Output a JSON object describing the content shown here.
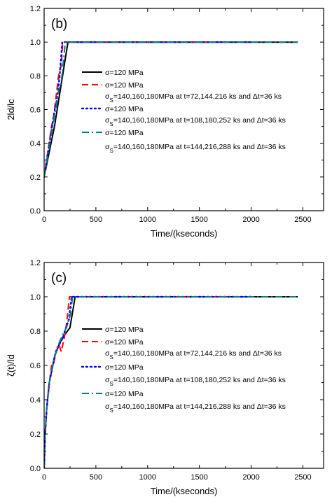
{
  "chart_data": [
    {
      "type": "line",
      "panel_label": "(b)",
      "xlabel": "Time/(kseconds)",
      "ylabel": "2ld/lc",
      "xlim": [
        0,
        2700
      ],
      "ylim": [
        0,
        1.2
      ],
      "xticks": [
        0,
        500,
        1000,
        1500,
        2000,
        2500
      ],
      "yticks": [
        0.0,
        0.2,
        0.4,
        0.6,
        0.8,
        1.0,
        1.2
      ],
      "tick_labels_x": [
        "0",
        "500",
        "1000",
        "1500",
        "2000",
        "2500"
      ],
      "tick_labels_y": [
        "0.0",
        "0.2",
        "0.4",
        "0.6",
        "0.8",
        "1.0",
        "1.2"
      ],
      "legend_position": "center-right",
      "series": [
        {
          "color": "#000000",
          "style": "solid",
          "legend": [
            "σ=120 MPa"
          ],
          "points": [
            [
              0,
              0.2
            ],
            [
              100,
              0.5
            ],
            [
              230,
              1.0
            ],
            [
              2450,
              1.0
            ]
          ]
        },
        {
          "color": "#ff0000",
          "style": "dash",
          "legend": [
            "σ=120 MPa",
            "σS=140,160,180MPa at t=72,144,216 ks and Δt=36 ks"
          ],
          "points": [
            [
              0,
              0.2
            ],
            [
              72,
              0.5
            ],
            [
              90,
              0.55
            ],
            [
              144,
              0.82
            ],
            [
              165,
              0.86
            ],
            [
              180,
              1.0
            ],
            [
              1800,
              1.0
            ]
          ]
        },
        {
          "color": "#0000ff",
          "style": "dot",
          "legend": [
            "σ=120 MPa",
            "σS=140,160,180MPa at t=108,180,252 ks and Δt=36 ks"
          ],
          "points": [
            [
              0,
              0.2
            ],
            [
              108,
              0.62
            ],
            [
              125,
              0.66
            ],
            [
              150,
              0.8
            ],
            [
              175,
              1.0
            ],
            [
              2000,
              1.0
            ]
          ]
        },
        {
          "color": "#008080",
          "style": "dashdot",
          "legend": [
            "σ=120 MPa",
            "σS=140,160,180MPa at t=144,216,288 ks and Δt=36 ks"
          ],
          "points": [
            [
              0,
              0.2
            ],
            [
              144,
              0.72
            ],
            [
              165,
              0.76
            ],
            [
              205,
              1.0
            ],
            [
              2450,
              1.0
            ]
          ]
        }
      ]
    },
    {
      "type": "line",
      "panel_label": "(c)",
      "xlabel": "Time/(kseconds)",
      "ylabel": "ζ(t)/ld",
      "xlim": [
        0,
        2700
      ],
      "ylim": [
        0,
        1.2
      ],
      "xticks": [
        0,
        500,
        1000,
        1500,
        2000,
        2500
      ],
      "yticks": [
        0.0,
        0.2,
        0.4,
        0.6,
        0.8,
        1.0,
        1.2
      ],
      "tick_labels_x": [
        "0",
        "500",
        "1000",
        "1500",
        "2000",
        "2500"
      ],
      "tick_labels_y": [
        "0.0",
        "0.2",
        "0.4",
        "0.6",
        "0.8",
        "1.0",
        "1.2"
      ],
      "legend_position": "center-right",
      "series": [
        {
          "color": "#000000",
          "style": "solid",
          "legend": [
            "σ=120 MPa"
          ],
          "points": [
            [
              0,
              0.0
            ],
            [
              10,
              0.2
            ],
            [
              25,
              0.35
            ],
            [
              50,
              0.5
            ],
            [
              100,
              0.65
            ],
            [
              150,
              0.73
            ],
            [
              200,
              0.78
            ],
            [
              250,
              0.82
            ],
            [
              300,
              1.0
            ],
            [
              2450,
              1.0
            ]
          ]
        },
        {
          "color": "#ff0000",
          "style": "dash",
          "legend": [
            "σ=120 MPa",
            "σS=140,160,180MPa at t=72,144,216 ks and Δt=36 ks"
          ],
          "points": [
            [
              0,
              0.0
            ],
            [
              10,
              0.2
            ],
            [
              25,
              0.35
            ],
            [
              50,
              0.5
            ],
            [
              72,
              0.6
            ],
            [
              90,
              0.6
            ],
            [
              110,
              0.67
            ],
            [
              144,
              0.72
            ],
            [
              165,
              0.68
            ],
            [
              195,
              0.76
            ],
            [
              216,
              0.84
            ],
            [
              245,
              1.0
            ],
            [
              1800,
              1.0
            ]
          ]
        },
        {
          "color": "#0000ff",
          "style": "dot",
          "legend": [
            "σ=120 MPa",
            "σS=140,160,180MPa at t=108,180,252 ks and Δt=36 ks"
          ],
          "points": [
            [
              0,
              0.0
            ],
            [
              10,
              0.2
            ],
            [
              25,
              0.35
            ],
            [
              50,
              0.5
            ],
            [
              108,
              0.67
            ],
            [
              125,
              0.7
            ],
            [
              180,
              0.76
            ],
            [
              200,
              0.8
            ],
            [
              240,
              0.87
            ],
            [
              265,
              1.0
            ],
            [
              2000,
              1.0
            ]
          ]
        },
        {
          "color": "#008080",
          "style": "dashdot",
          "legend": [
            "σ=120 MPa",
            "σS=140,160,180MPa at t=144,216,288 ks and Δt=36 ks"
          ],
          "points": [
            [
              0,
              0.0
            ],
            [
              10,
              0.2
            ],
            [
              25,
              0.35
            ],
            [
              50,
              0.5
            ],
            [
              100,
              0.65
            ],
            [
              144,
              0.73
            ],
            [
              180,
              0.78
            ],
            [
              216,
              0.82
            ],
            [
              255,
              0.9
            ],
            [
              275,
              1.0
            ],
            [
              2450,
              1.0
            ]
          ]
        }
      ]
    }
  ]
}
